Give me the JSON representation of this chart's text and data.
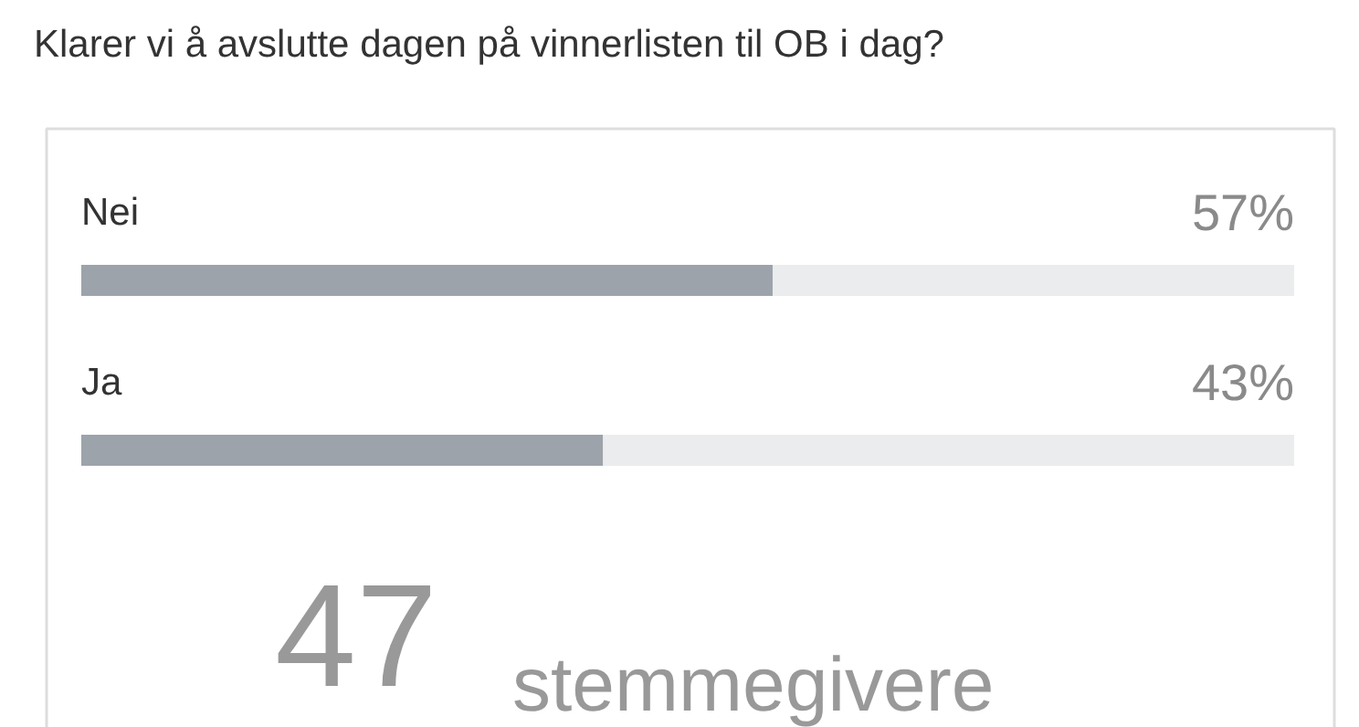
{
  "chart_data": {
    "type": "bar",
    "orientation": "horizontal",
    "title": "Klarer vi å avslutte dagen på vinnerlisten til OB i dag?",
    "categories": [
      "Nei",
      "Ja"
    ],
    "values": [
      57,
      43
    ],
    "color": "#9ca3aa",
    "value_labels": [
      "57%",
      "43%"
    ],
    "annotations": [
      "47 stemmegivere"
    ]
  }
}
